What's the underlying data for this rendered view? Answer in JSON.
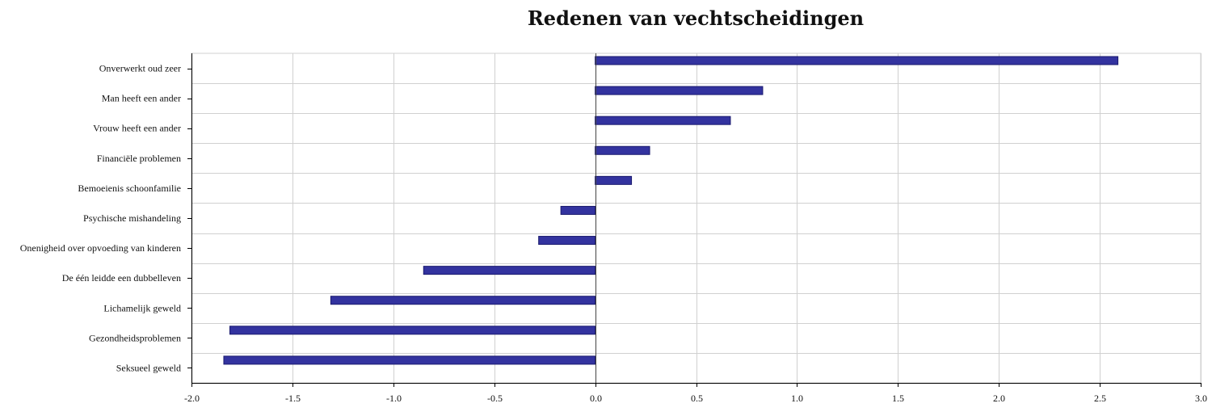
{
  "chart_data": {
    "type": "bar",
    "orientation": "horizontal",
    "title": "Redenen van vechtscheidingen",
    "xlabel": "",
    "ylabel": "",
    "categories": [
      "Onverwerkt oud zeer",
      "Man heeft een ander",
      "Vrouw heeft een ander",
      "Financiële problemen",
      "Bemoeienis schoonfamilie",
      "Psychische mishandeling",
      "Onenigheid over opvoeding van kinderen",
      "De één leidde een dubbelleven",
      "Lichamelijk geweld",
      "Gezondheidsproblemen",
      "Seksueel geweld"
    ],
    "values": [
      2.59,
      0.83,
      0.67,
      0.27,
      0.18,
      -0.17,
      -0.28,
      -0.85,
      -1.31,
      -1.81,
      -1.84
    ],
    "xlim": [
      -2.0,
      3.0
    ],
    "xticks": [
      "-2.0",
      "-1.5",
      "-1.0",
      "-0.5",
      "0.0",
      "0.5",
      "1.0",
      "1.5",
      "2.0",
      "2.5",
      "3.0"
    ],
    "grid": true,
    "legend": "none",
    "colors": {
      "bar_fill": "#33339f",
      "bar_stroke": "#1a1a6e",
      "grid": "#d0d0d0",
      "axis": "#000000",
      "zero_line": "#444444"
    }
  }
}
